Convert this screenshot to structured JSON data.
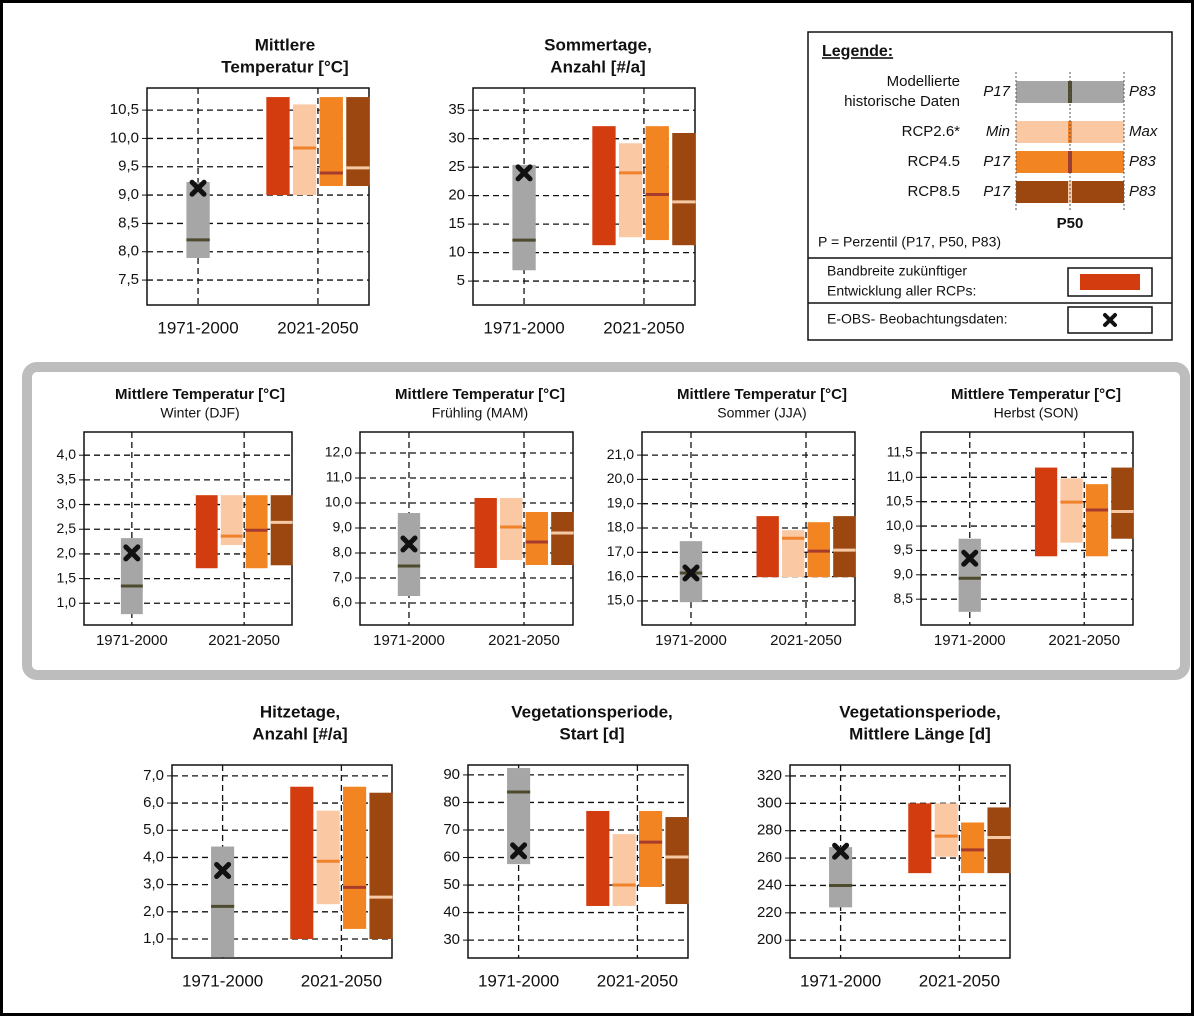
{
  "chart_data": [
    {
      "type": "range",
      "title": [
        "Mittlere",
        "Temperatur [°C]"
      ],
      "categories": [
        "1971-2000",
        "2021-2050"
      ],
      "ylim": [
        7.06,
        10.89
      ],
      "yticks": [
        {
          "value": 7.5,
          "label": "7,5"
        },
        {
          "value": 8.0,
          "label": "8,0"
        },
        {
          "value": 8.5,
          "label": "8,5"
        },
        {
          "value": 9.0,
          "label": "9,0"
        },
        {
          "value": 9.5,
          "label": "9,5"
        },
        {
          "value": 10.0,
          "label": "10,0"
        },
        {
          "value": 10.5,
          "label": "10,5"
        }
      ],
      "bars": [
        {
          "color": "#a6a6a6",
          "median_color": "#4d4a2e",
          "low": 7.89,
          "high": 9.23,
          "median": 8.21
        },
        {
          "color": "#d33c0e",
          "low": 9.0,
          "high": 10.73
        },
        {
          "color": "#fbc8a4",
          "median_color": "#f0822a",
          "low": 9.0,
          "high": 10.6,
          "median": 9.83
        },
        {
          "color": "#f28522",
          "median_color": "#a83c2c",
          "low": 9.16,
          "high": 10.73,
          "median": 9.39
        },
        {
          "color": "#9c4710",
          "median_color": "#f5c9a5",
          "low": 9.16,
          "high": 10.73,
          "median": 9.48
        }
      ],
      "observation": 9.12
    },
    {
      "type": "range",
      "title": [
        "Sommertage,",
        "Anzahl [#/a]"
      ],
      "categories": [
        "1971-2000",
        "2021-2050"
      ],
      "ylim": [
        0.8,
        38.9
      ],
      "yticks": [
        5,
        10,
        15,
        20,
        25,
        30,
        35
      ],
      "bars": [
        {
          "color": "#a6a6a6",
          "median_color": "#4d4a2e",
          "low": 6.9,
          "high": 25.4,
          "median": 12.2
        },
        {
          "color": "#d33c0e",
          "low": 11.3,
          "high": 32.2
        },
        {
          "color": "#fbc8a4",
          "median_color": "#f0822a",
          "low": 12.7,
          "high": 29.2,
          "median": 24.0
        },
        {
          "color": "#f28522",
          "median_color": "#a83c2c",
          "low": 12.2,
          "high": 32.2,
          "median": 20.2
        },
        {
          "color": "#9c4710",
          "median_color": "#f5c9a5",
          "low": 11.3,
          "high": 31.0,
          "median": 18.9
        }
      ],
      "observation": 24.0
    },
    {
      "type": "range",
      "title": [
        "Mittlere Temperatur [°C]"
      ],
      "subtitle": "Winter (DJF)",
      "categories": [
        "1971-2000",
        "2021-2050"
      ],
      "ylim": [
        0.56,
        4.47
      ],
      "yticks": [
        {
          "value": 1.0,
          "label": "1,0"
        },
        {
          "value": 1.5,
          "label": "1,5"
        },
        {
          "value": 2.0,
          "label": "2,0"
        },
        {
          "value": 2.5,
          "label": "2,5"
        },
        {
          "value": 3.0,
          "label": "3,0"
        },
        {
          "value": 3.5,
          "label": "3,5"
        },
        {
          "value": 4.0,
          "label": "4,0"
        }
      ],
      "bars": [
        {
          "color": "#a6a6a6",
          "median_color": "#4d4a2e",
          "low": 0.78,
          "high": 2.32,
          "median": 1.35
        },
        {
          "color": "#d33c0e",
          "low": 1.71,
          "high": 3.19
        },
        {
          "color": "#fbc8a4",
          "median_color": "#f0822a",
          "low": 2.18,
          "high": 3.19,
          "median": 2.36
        },
        {
          "color": "#f28522",
          "median_color": "#a83c2c",
          "low": 1.71,
          "high": 3.19,
          "median": 2.48
        },
        {
          "color": "#9c4710",
          "median_color": "#f5c9a5",
          "low": 1.77,
          "high": 3.19,
          "median": 2.64
        }
      ],
      "observation": 2.02
    },
    {
      "type": "range",
      "title": [
        "Mittlere Temperatur [°C]"
      ],
      "subtitle": "Frühling (MAM)",
      "categories": [
        "1971-2000",
        "2021-2050"
      ],
      "ylim": [
        5.12,
        12.84
      ],
      "yticks": [
        {
          "value": 6.0,
          "label": "6,0"
        },
        {
          "value": 7.0,
          "label": "7,0"
        },
        {
          "value": 8.0,
          "label": "8,0"
        },
        {
          "value": 9.0,
          "label": "9,0"
        },
        {
          "value": 10.0,
          "label": "10,0"
        },
        {
          "value": 11.0,
          "label": "11,0"
        },
        {
          "value": 12.0,
          "label": "12,0"
        }
      ],
      "bars": [
        {
          "color": "#a6a6a6",
          "median_color": "#4d4a2e",
          "low": 6.28,
          "high": 9.6,
          "median": 7.48
        },
        {
          "color": "#d33c0e",
          "low": 7.4,
          "high": 10.2
        },
        {
          "color": "#fbc8a4",
          "median_color": "#f0822a",
          "low": 7.72,
          "high": 10.2,
          "median": 9.04
        },
        {
          "color": "#f28522",
          "median_color": "#a83c2c",
          "low": 7.52,
          "high": 9.64,
          "median": 8.44
        },
        {
          "color": "#9c4710",
          "median_color": "#f5c9a5",
          "low": 7.52,
          "high": 9.64,
          "median": 8.8
        }
      ],
      "observation": 8.36
    },
    {
      "type": "range",
      "title": [
        "Mittlere Temperatur [°C]"
      ],
      "subtitle": "Sommer (JJA)",
      "categories": [
        "1971-2000",
        "2021-2050"
      ],
      "ylim": [
        14.01,
        21.95
      ],
      "yticks": [
        {
          "value": 15.0,
          "label": "15,0"
        },
        {
          "value": 16.0,
          "label": "16,0"
        },
        {
          "value": 17.0,
          "label": "17,0"
        },
        {
          "value": 18.0,
          "label": "18,0"
        },
        {
          "value": 19.0,
          "label": "19,0"
        },
        {
          "value": 20.0,
          "label": "20,0"
        },
        {
          "value": 21.0,
          "label": "21,0"
        }
      ],
      "bars": [
        {
          "color": "#a6a6a6",
          "median_color": "#4d4a2e",
          "low": 14.95,
          "high": 17.46,
          "median": 16.15
        },
        {
          "color": "#d33c0e",
          "low": 15.98,
          "high": 18.49
        },
        {
          "color": "#fbc8a4",
          "median_color": "#f0822a",
          "low": 15.98,
          "high": 17.91,
          "median": 17.58
        },
        {
          "color": "#f28522",
          "median_color": "#a83c2c",
          "low": 15.98,
          "high": 18.24,
          "median": 17.05
        },
        {
          "color": "#9c4710",
          "median_color": "#f5c9a5",
          "low": 15.98,
          "high": 18.49,
          "median": 17.09
        }
      ],
      "observation": 16.15
    },
    {
      "type": "range",
      "title": [
        "Mittlere Temperatur [°C]"
      ],
      "subtitle": "Herbst (SON)",
      "categories": [
        "1971-2000",
        "2021-2050"
      ],
      "ylim": [
        7.97,
        11.93
      ],
      "yticks": [
        {
          "value": 8.5,
          "label": "8,5"
        },
        {
          "value": 9.0,
          "label": "9,0"
        },
        {
          "value": 9.5,
          "label": "9,5"
        },
        {
          "value": 10.0,
          "label": "10,0"
        },
        {
          "value": 10.5,
          "label": "10,5"
        },
        {
          "value": 11.0,
          "label": "11,0"
        },
        {
          "value": 11.5,
          "label": "11,5"
        }
      ],
      "bars": [
        {
          "color": "#a6a6a6",
          "median_color": "#4d4a2e",
          "low": 8.24,
          "high": 9.74,
          "median": 8.93
        },
        {
          "color": "#d33c0e",
          "low": 9.38,
          "high": 11.2
        },
        {
          "color": "#fbc8a4",
          "median_color": "#f0822a",
          "low": 9.66,
          "high": 10.98,
          "median": 10.49
        },
        {
          "color": "#f28522",
          "median_color": "#a83c2c",
          "low": 9.38,
          "high": 10.86,
          "median": 10.33
        },
        {
          "color": "#9c4710",
          "median_color": "#f5c9a5",
          "low": 9.74,
          "high": 11.2,
          "median": 10.3
        }
      ],
      "observation": 9.34
    },
    {
      "type": "range",
      "title": [
        "Hitzetage,",
        "Anzahl [#/a]"
      ],
      "categories": [
        "1971-2000",
        "2021-2050"
      ],
      "ylim": [
        0.3,
        7.4
      ],
      "yticks": [
        {
          "value": 1.0,
          "label": "1,0"
        },
        {
          "value": 2.0,
          "label": "2,0"
        },
        {
          "value": 3.0,
          "label": "3,0"
        },
        {
          "value": 4.0,
          "label": "4,0"
        },
        {
          "value": 5.0,
          "label": "5,0"
        },
        {
          "value": 6.0,
          "label": "6,0"
        },
        {
          "value": 7.0,
          "label": "7,0"
        }
      ],
      "bars": [
        {
          "color": "#a6a6a6",
          "median_color": "#4d4a2e",
          "low": 0.33,
          "high": 4.4,
          "median": 2.2
        },
        {
          "color": "#d33c0e",
          "low": 1.0,
          "high": 6.6
        },
        {
          "color": "#fbc8a4",
          "median_color": "#f0822a",
          "low": 2.28,
          "high": 5.72,
          "median": 3.86
        },
        {
          "color": "#f28522",
          "median_color": "#a83c2c",
          "low": 1.37,
          "high": 6.6,
          "median": 2.9
        },
        {
          "color": "#9c4710",
          "median_color": "#f5c9a5",
          "low": 1.0,
          "high": 6.38,
          "median": 2.54
        }
      ],
      "observation": 3.52
    },
    {
      "type": "range",
      "title": [
        "Vegetationsperiode,",
        "Start [d]"
      ],
      "categories": [
        "1971-2000",
        "2021-2050"
      ],
      "ylim": [
        23.5,
        93.6
      ],
      "yticks": [
        30,
        40,
        50,
        60,
        70,
        80,
        90
      ],
      "bars": [
        {
          "color": "#a6a6a6",
          "median_color": "#4d4a2e",
          "low": 57.6,
          "high": 92.5,
          "median": 83.8
        },
        {
          "color": "#d33c0e",
          "low": 42.4,
          "high": 76.9
        },
        {
          "color": "#fbc8a4",
          "median_color": "#f0822a",
          "low": 42.4,
          "high": 68.5,
          "median": 50.0
        },
        {
          "color": "#f28522",
          "median_color": "#a83c2c",
          "low": 49.3,
          "high": 76.9,
          "median": 65.6
        },
        {
          "color": "#9c4710",
          "median_color": "#f5c9a5",
          "low": 43.1,
          "high": 74.7,
          "median": 60.2
        }
      ],
      "observation": 62.4
    },
    {
      "type": "range",
      "title": [
        "Vegetationsperiode,",
        "Mittlere Länge [d]"
      ],
      "categories": [
        "1971-2000",
        "2021-2050"
      ],
      "ylim": [
        187,
        328
      ],
      "yticks": [
        200,
        220,
        240,
        260,
        280,
        300,
        320
      ],
      "bars": [
        {
          "color": "#a6a6a6",
          "median_color": "#4d4a2e",
          "low": 224,
          "high": 268,
          "median": 240
        },
        {
          "color": "#d33c0e",
          "low": 249,
          "high": 300
        },
        {
          "color": "#fbc8a4",
          "median_color": "#f0822a",
          "low": 261,
          "high": 300,
          "median": 276
        },
        {
          "color": "#f28522",
          "median_color": "#a83c2c",
          "low": 249,
          "high": 286,
          "median": 266
        },
        {
          "color": "#9c4710",
          "median_color": "#f5c9a5",
          "low": 249,
          "high": 297,
          "median": 275
        }
      ],
      "observation": 265
    }
  ],
  "legend": {
    "title": "Legende:",
    "entries": [
      {
        "label": [
          "Modellierte",
          "historische Daten"
        ],
        "low": "P17",
        "high": "P83",
        "color": "#a6a6a6",
        "median_color": "#4d4a2e"
      },
      {
        "label": [
          "RCP2.6*"
        ],
        "low": "Min",
        "high": "Max",
        "color": "#fbc8a4",
        "median_color": "#f0822a"
      },
      {
        "label": [
          "RCP4.5"
        ],
        "low": "P17",
        "high": "P83",
        "color": "#f28522",
        "median_color": "#a83c2c"
      },
      {
        "label": [
          "RCP8.5"
        ],
        "low": "P17",
        "high": "P83",
        "color": "#9c4710",
        "median_color": "#f5c9a5"
      }
    ],
    "median_label": "P50",
    "note": "P = Perzentil (P17, P50, P83)",
    "range_label": [
      "Bandbreite zukünftiger",
      "Entwicklung aller RCPs:"
    ],
    "range_color": "#d33c0e",
    "observation_label": "E-OBS- Beobachtungsdaten:"
  }
}
